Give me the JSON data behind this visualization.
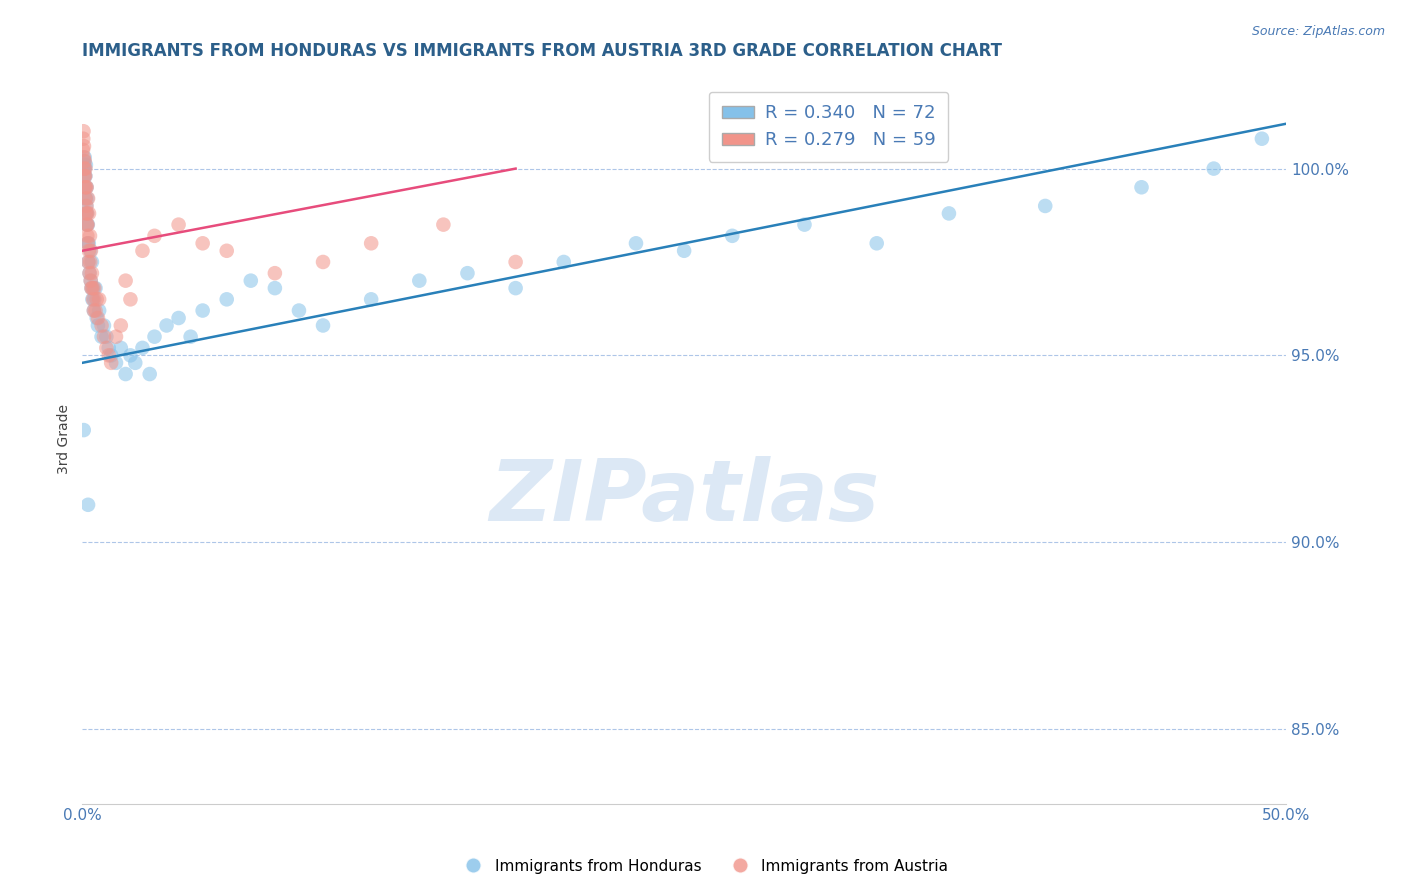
{
  "title": "IMMIGRANTS FROM HONDURAS VS IMMIGRANTS FROM AUSTRIA 3RD GRADE CORRELATION CHART",
  "source": "Source: ZipAtlas.com",
  "ylabel": "3rd Grade",
  "xlim": [
    0.0,
    50.0
  ],
  "ylim": [
    83.0,
    102.5
  ],
  "xticks": [
    0.0,
    10.0,
    20.0,
    30.0,
    40.0,
    50.0
  ],
  "yticks": [
    85.0,
    90.0,
    95.0,
    100.0
  ],
  "ytick_labels": [
    "85.0%",
    "90.0%",
    "95.0%",
    "100.0%"
  ],
  "xtick_labels": [
    "0.0%",
    "",
    "",
    "",
    "",
    "50.0%"
  ],
  "legend_labels": [
    "Immigrants from Honduras",
    "Immigrants from Austria"
  ],
  "legend_r_n": [
    {
      "R": "0.340",
      "N": "72"
    },
    {
      "R": "0.279",
      "N": "59"
    }
  ],
  "blue_color": "#85c1e9",
  "pink_color": "#f1948a",
  "blue_line_color": "#2980b9",
  "pink_line_color": "#e74c7c",
  "grid_color": "#aec6e8",
  "title_color": "#2c5f8a",
  "axis_color": "#4a7ab5",
  "watermark_color": "#dce8f5",
  "blue_scatter_x": [
    0.05,
    0.07,
    0.08,
    0.09,
    0.1,
    0.11,
    0.12,
    0.13,
    0.14,
    0.15,
    0.16,
    0.17,
    0.18,
    0.19,
    0.2,
    0.21,
    0.22,
    0.23,
    0.25,
    0.27,
    0.3,
    0.33,
    0.35,
    0.38,
    0.4,
    0.42,
    0.45,
    0.48,
    0.5,
    0.55,
    0.6,
    0.65,
    0.7,
    0.8,
    0.9,
    1.0,
    1.1,
    1.2,
    1.4,
    1.6,
    1.8,
    2.0,
    2.2,
    2.5,
    2.8,
    3.0,
    3.5,
    4.0,
    4.5,
    5.0,
    6.0,
    7.0,
    8.0,
    9.0,
    10.0,
    12.0,
    14.0,
    16.0,
    18.0,
    20.0,
    23.0,
    25.0,
    27.0,
    30.0,
    33.0,
    36.0,
    40.0,
    44.0,
    47.0,
    49.0,
    0.06,
    0.24
  ],
  "blue_scatter_y": [
    100.0,
    100.2,
    100.1,
    99.8,
    100.3,
    100.0,
    99.5,
    99.8,
    99.2,
    100.1,
    98.8,
    99.0,
    99.5,
    98.5,
    98.8,
    99.2,
    98.0,
    98.5,
    97.5,
    98.0,
    97.2,
    97.8,
    97.0,
    96.8,
    97.5,
    96.5,
    96.8,
    96.2,
    96.5,
    96.8,
    96.0,
    95.8,
    96.2,
    95.5,
    95.8,
    95.5,
    95.2,
    95.0,
    94.8,
    95.2,
    94.5,
    95.0,
    94.8,
    95.2,
    94.5,
    95.5,
    95.8,
    96.0,
    95.5,
    96.2,
    96.5,
    97.0,
    96.8,
    96.2,
    95.8,
    96.5,
    97.0,
    97.2,
    96.8,
    97.5,
    98.0,
    97.8,
    98.2,
    98.5,
    98.0,
    98.8,
    99.0,
    99.5,
    100.0,
    100.8,
    93.0,
    91.0
  ],
  "pink_scatter_x": [
    0.03,
    0.04,
    0.05,
    0.06,
    0.07,
    0.08,
    0.09,
    0.1,
    0.11,
    0.12,
    0.13,
    0.14,
    0.15,
    0.16,
    0.17,
    0.18,
    0.19,
    0.2,
    0.21,
    0.22,
    0.23,
    0.25,
    0.27,
    0.3,
    0.33,
    0.35,
    0.38,
    0.4,
    0.45,
    0.5,
    0.55,
    0.6,
    0.65,
    0.7,
    0.8,
    0.9,
    1.0,
    1.1,
    1.2,
    1.4,
    1.6,
    1.8,
    2.0,
    2.5,
    3.0,
    4.0,
    5.0,
    6.0,
    8.0,
    10.0,
    12.0,
    15.0,
    18.0,
    0.24,
    0.28,
    0.32,
    0.36,
    0.42,
    0.48
  ],
  "pink_scatter_y": [
    100.5,
    100.8,
    101.0,
    100.3,
    100.6,
    100.0,
    99.8,
    100.2,
    99.5,
    99.8,
    100.0,
    99.2,
    99.5,
    98.8,
    99.0,
    99.5,
    98.5,
    98.8,
    98.2,
    98.5,
    98.0,
    97.5,
    97.8,
    97.2,
    97.5,
    97.0,
    96.8,
    97.2,
    96.5,
    96.8,
    96.2,
    96.5,
    96.0,
    96.5,
    95.8,
    95.5,
    95.2,
    95.0,
    94.8,
    95.5,
    95.8,
    97.0,
    96.5,
    97.8,
    98.2,
    98.5,
    98.0,
    97.8,
    97.2,
    97.5,
    98.0,
    98.5,
    97.5,
    99.2,
    98.8,
    98.2,
    97.8,
    96.8,
    96.2
  ],
  "blue_trendline_x": [
    0.0,
    50.0
  ],
  "blue_trendline_y": [
    94.8,
    101.2
  ],
  "pink_trendline_x": [
    0.0,
    18.0
  ],
  "pink_trendline_y": [
    97.8,
    100.0
  ]
}
